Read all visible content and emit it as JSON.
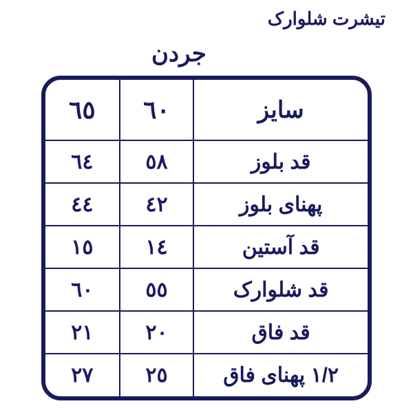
{
  "titles": {
    "top": "تیشرت شلوارک",
    "sub": "جردن"
  },
  "table": {
    "type": "table",
    "border_color": "#1a1a5e",
    "border_width_outer": 6,
    "border_width_inner": 2,
    "border_radius": 28,
    "background_color": "#ffffff",
    "text_color": "#1a1a5e",
    "header_fontsize": 36,
    "body_fontsize": 30,
    "font_weight": "bold",
    "column_widths_pct": [
      54,
      23,
      23
    ],
    "header": {
      "label": "سایز",
      "sizes": [
        "٦٠",
        "٦٥"
      ]
    },
    "rows": [
      {
        "label": "قد بلوز",
        "values": [
          "٥٨",
          "٦٤"
        ]
      },
      {
        "label": "پهنای بلوز",
        "values": [
          "٤٢",
          "٤٤"
        ]
      },
      {
        "label": "قد آستین",
        "values": [
          "١٤",
          "١٥"
        ]
      },
      {
        "label": "قد شلوارک",
        "values": [
          "٥٥",
          "٦٠"
        ]
      },
      {
        "label": "قد فاق",
        "values": [
          "٢٠",
          "٢١"
        ]
      },
      {
        "label": "١/٢ پهنای فاق",
        "values": [
          "٢٥",
          "٢٧"
        ]
      }
    ]
  }
}
